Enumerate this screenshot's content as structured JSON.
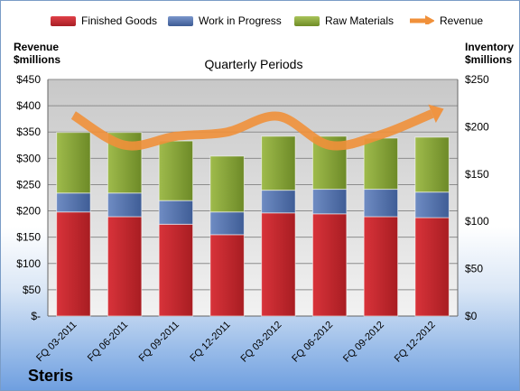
{
  "chart_data": {
    "type": "bar",
    "stacked": true,
    "title": "Quarterly Periods",
    "company": "Steris",
    "categories": [
      "FQ 03-2011",
      "FQ 06-2011",
      "FQ 09-2011",
      "FQ 12-2011",
      "FQ 03-2012",
      "FQ 06-2012",
      "FQ 09-2012",
      "FQ 12-2012"
    ],
    "series": [
      {
        "name": "Finished Goods",
        "color": "#c0272d",
        "values": [
          110,
          105,
          97,
          86,
          109,
          108,
          105,
          104
        ]
      },
      {
        "name": "Work in Progress",
        "color": "#4f6fa8",
        "values": [
          20,
          25,
          25,
          24,
          24,
          26,
          29,
          27
        ]
      },
      {
        "name": "Raw Materials",
        "color": "#8aa83a",
        "values": [
          64,
          64,
          63,
          59,
          57,
          56,
          54,
          58
        ]
      }
    ],
    "line": {
      "name": "Revenue",
      "color": "#f0903a",
      "values": [
        382,
        325,
        342,
        350,
        380,
        325,
        345,
        385
      ]
    },
    "left_axis": {
      "label_line1": "Revenue",
      "label_line2": "$millions",
      "min": 0,
      "max": 450,
      "step": 50,
      "tick_labels": [
        "$-",
        "$50",
        "$100",
        "$150",
        "$200",
        "$250",
        "$300",
        "$350",
        "$400",
        "$450"
      ]
    },
    "right_axis": {
      "label_line1": "Inventory",
      "label_line2": "$millions",
      "min": 0,
      "max": 250,
      "step": 50,
      "tick_labels": [
        "$0",
        "$50",
        "$100",
        "$150",
        "$200",
        "$250"
      ]
    },
    "legend_position": "top",
    "grid": true
  }
}
